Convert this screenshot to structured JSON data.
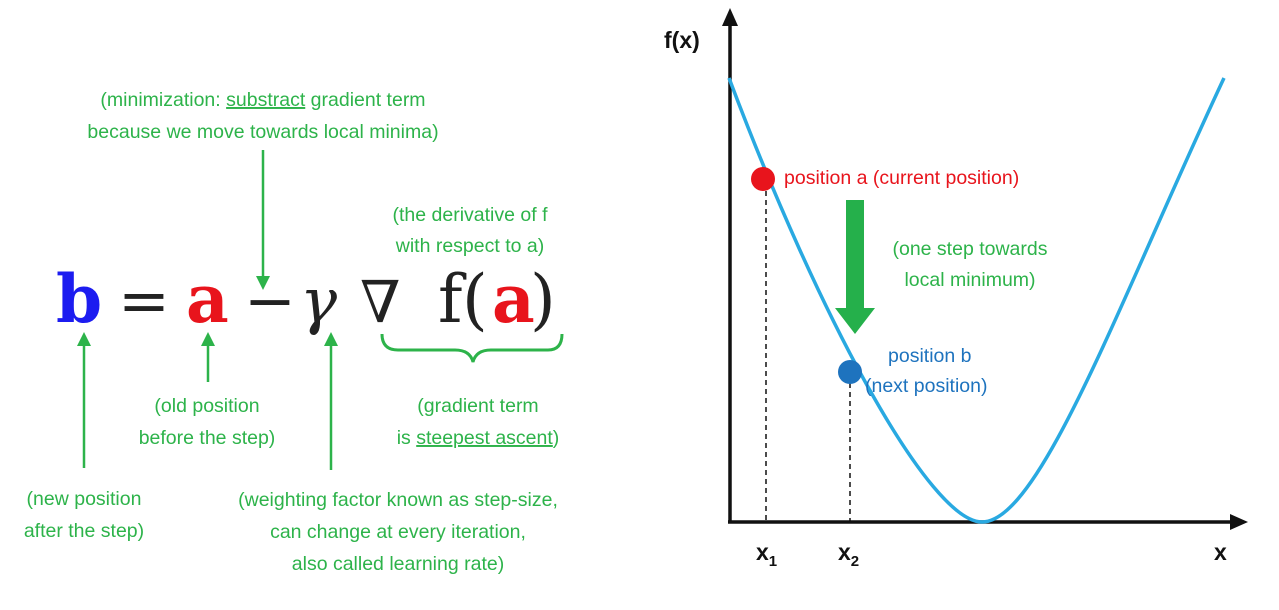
{
  "colors": {
    "green": "#2db34a",
    "red": "#e8141c",
    "blue": "#1e73be",
    "eq_blue": "#1c1cf0",
    "curve": "#29a9e1",
    "black": "#111111"
  },
  "equation": {
    "b": "b",
    "eq": "=",
    "a": "a",
    "minus": "−",
    "gamma": "γ",
    "nabla": "∇",
    "f": "f",
    "lparen": "(",
    "a2": "a",
    "rparen": ")"
  },
  "notes": {
    "minimization_line1_pre": "(minimization: ",
    "minimization_line1_underlined": "substract",
    "minimization_line1_post": " gradient term",
    "minimization_line2": "because we move towards local minima)",
    "derivative_line1": "(the derivative of f",
    "derivative_line2": "with respect to a)",
    "old_line1": "(old position",
    "old_line2": "before the step)",
    "gradient_line1": "(gradient term",
    "gradient_line2_pre": "is ",
    "gradient_line2_underlined": "steepest ascent",
    "gradient_line2_post": ")",
    "new_line1": "(new position",
    "new_line2": "after the step)",
    "weight_line1": "(weighting factor known as step-size,",
    "weight_line2": "can change at every iteration,",
    "weight_line3": "also called learning rate)"
  },
  "plot": {
    "y_axis_label": "f(x)",
    "x_axis_label": "x",
    "x1_label": "x",
    "x1_sub": "1",
    "x2_label": "x",
    "x2_sub": "2",
    "point_a_label": "position a (current position)",
    "point_b_line1": "position b",
    "point_b_line2": "(next position)",
    "step_line1": "(one step towards",
    "step_line2": "local minimum)"
  }
}
